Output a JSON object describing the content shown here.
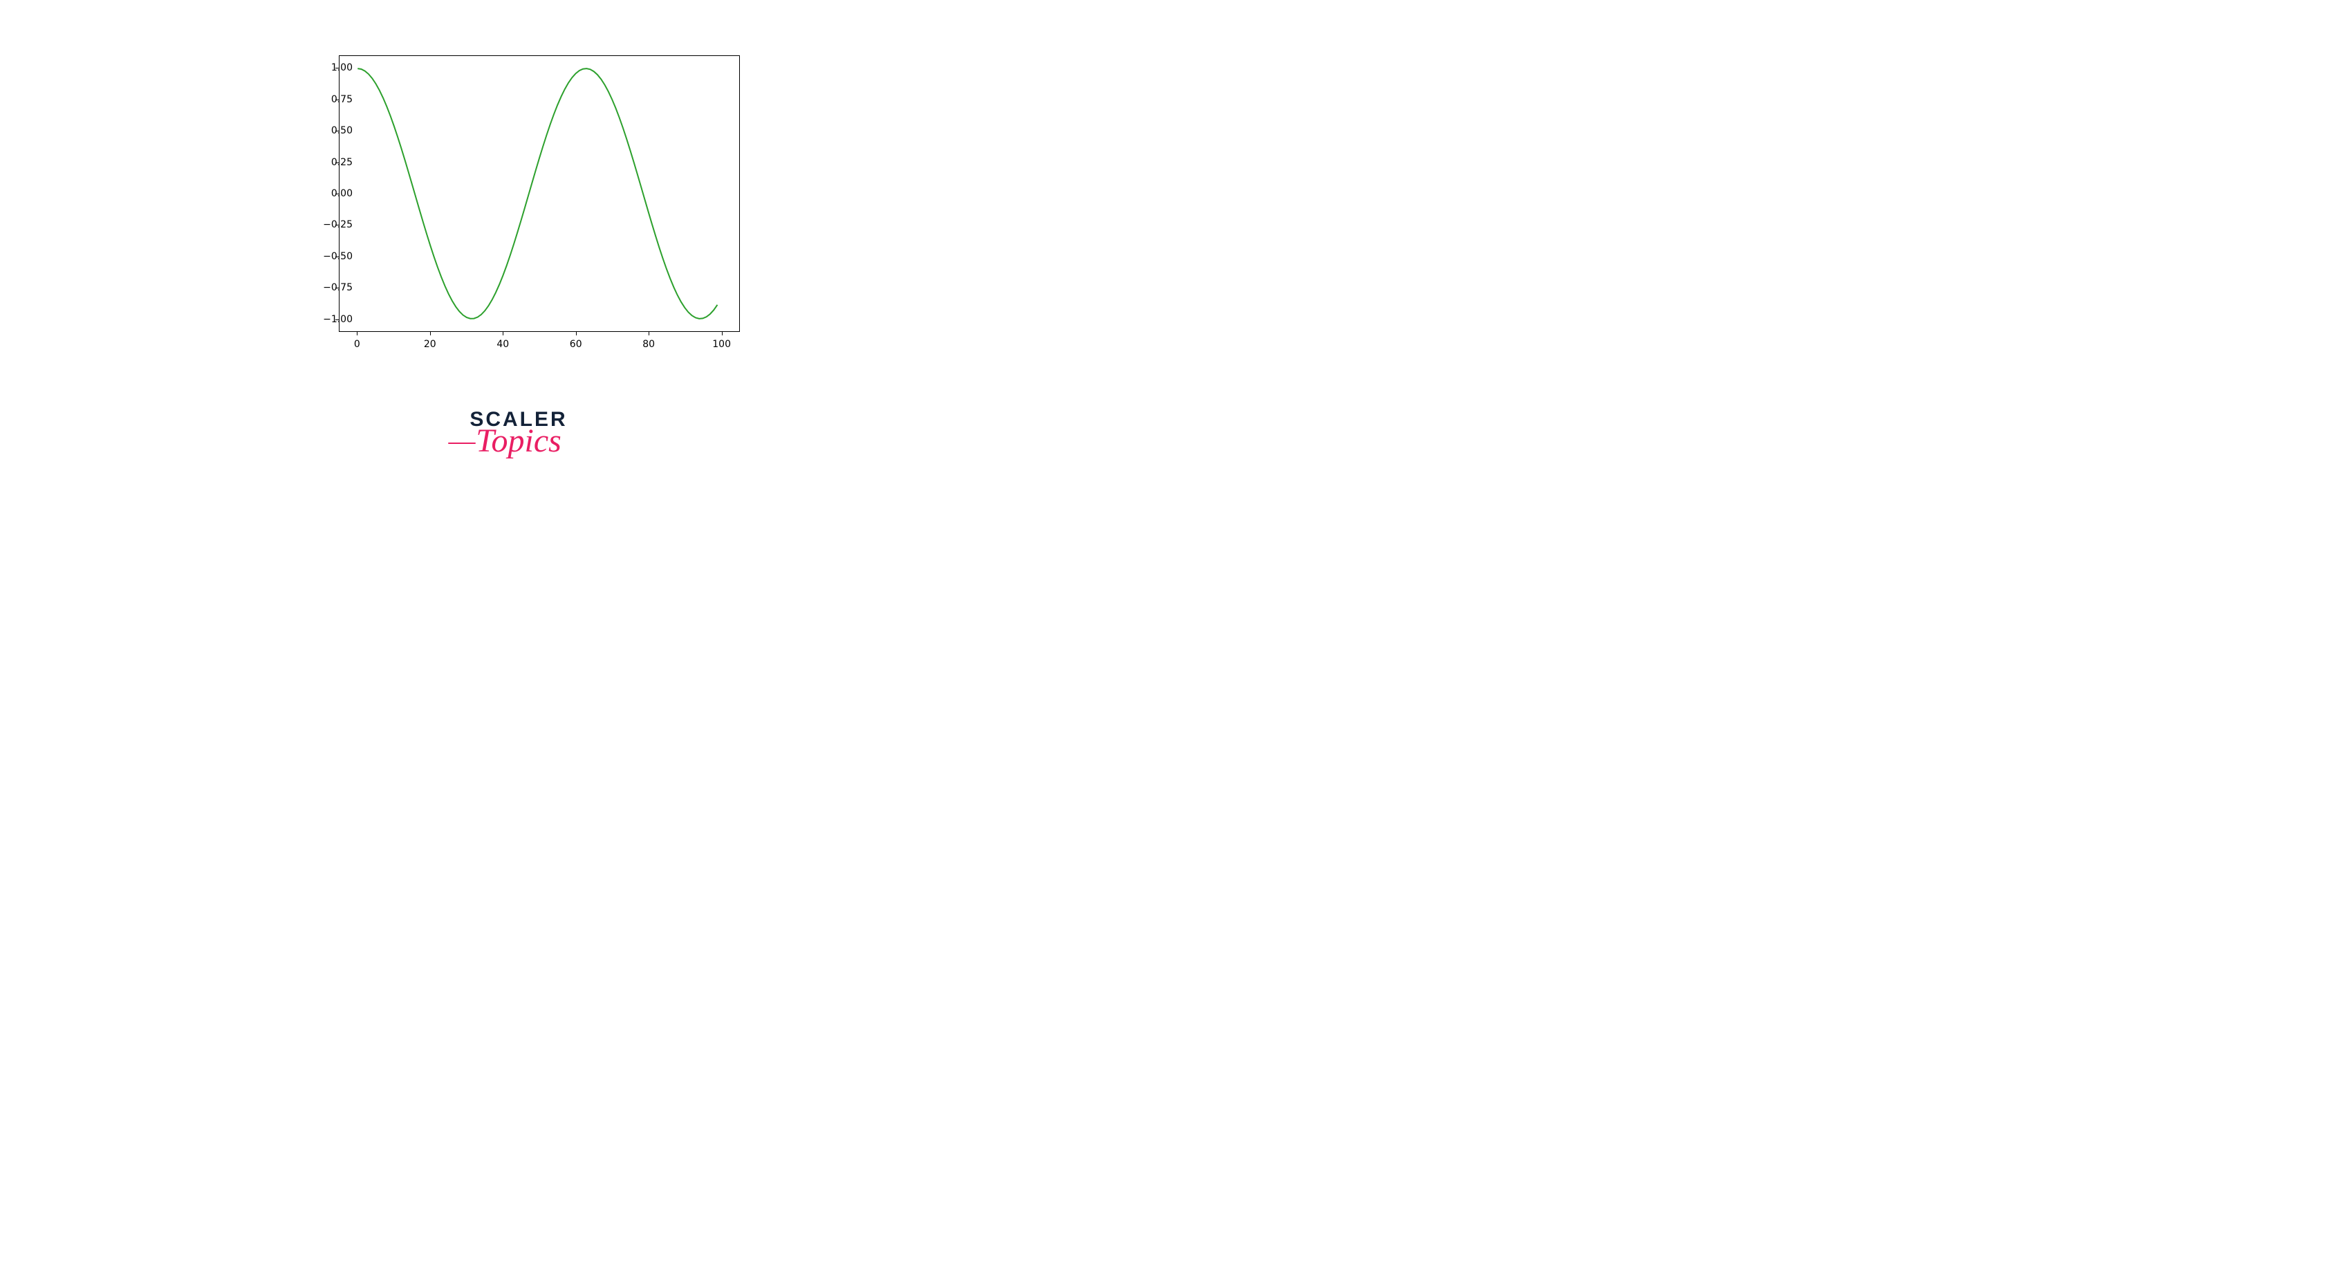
{
  "chart": {
    "type": "line",
    "function": "cos(x/10)",
    "x_range": [
      0,
      100
    ],
    "n_points": 100,
    "line_color": "#2ca02c",
    "line_width": 2,
    "background_color": "#ffffff",
    "border_color": "#000000",
    "xlim": [
      -5,
      105
    ],
    "ylim": [
      -1.1,
      1.1
    ],
    "xticks": [
      0,
      20,
      40,
      60,
      80,
      100
    ],
    "yticks": [
      -1.0,
      -0.75,
      -0.5,
      -0.25,
      0.0,
      0.25,
      0.5,
      0.75,
      1.0
    ],
    "ytick_labels": [
      "−1.00",
      "−0.75",
      "−0.50",
      "−0.25",
      "0.00",
      "0.25",
      "0.50",
      "0.75",
      "1.00"
    ],
    "xtick_labels": [
      "0",
      "20",
      "40",
      "60",
      "80",
      "100"
    ],
    "tick_fontsize": 14,
    "tick_color": "#000000",
    "grid": false
  },
  "logo": {
    "line1": "SCALER",
    "line2": "Topics",
    "line1_color": "#132238",
    "line2_color": "#e91e63"
  }
}
